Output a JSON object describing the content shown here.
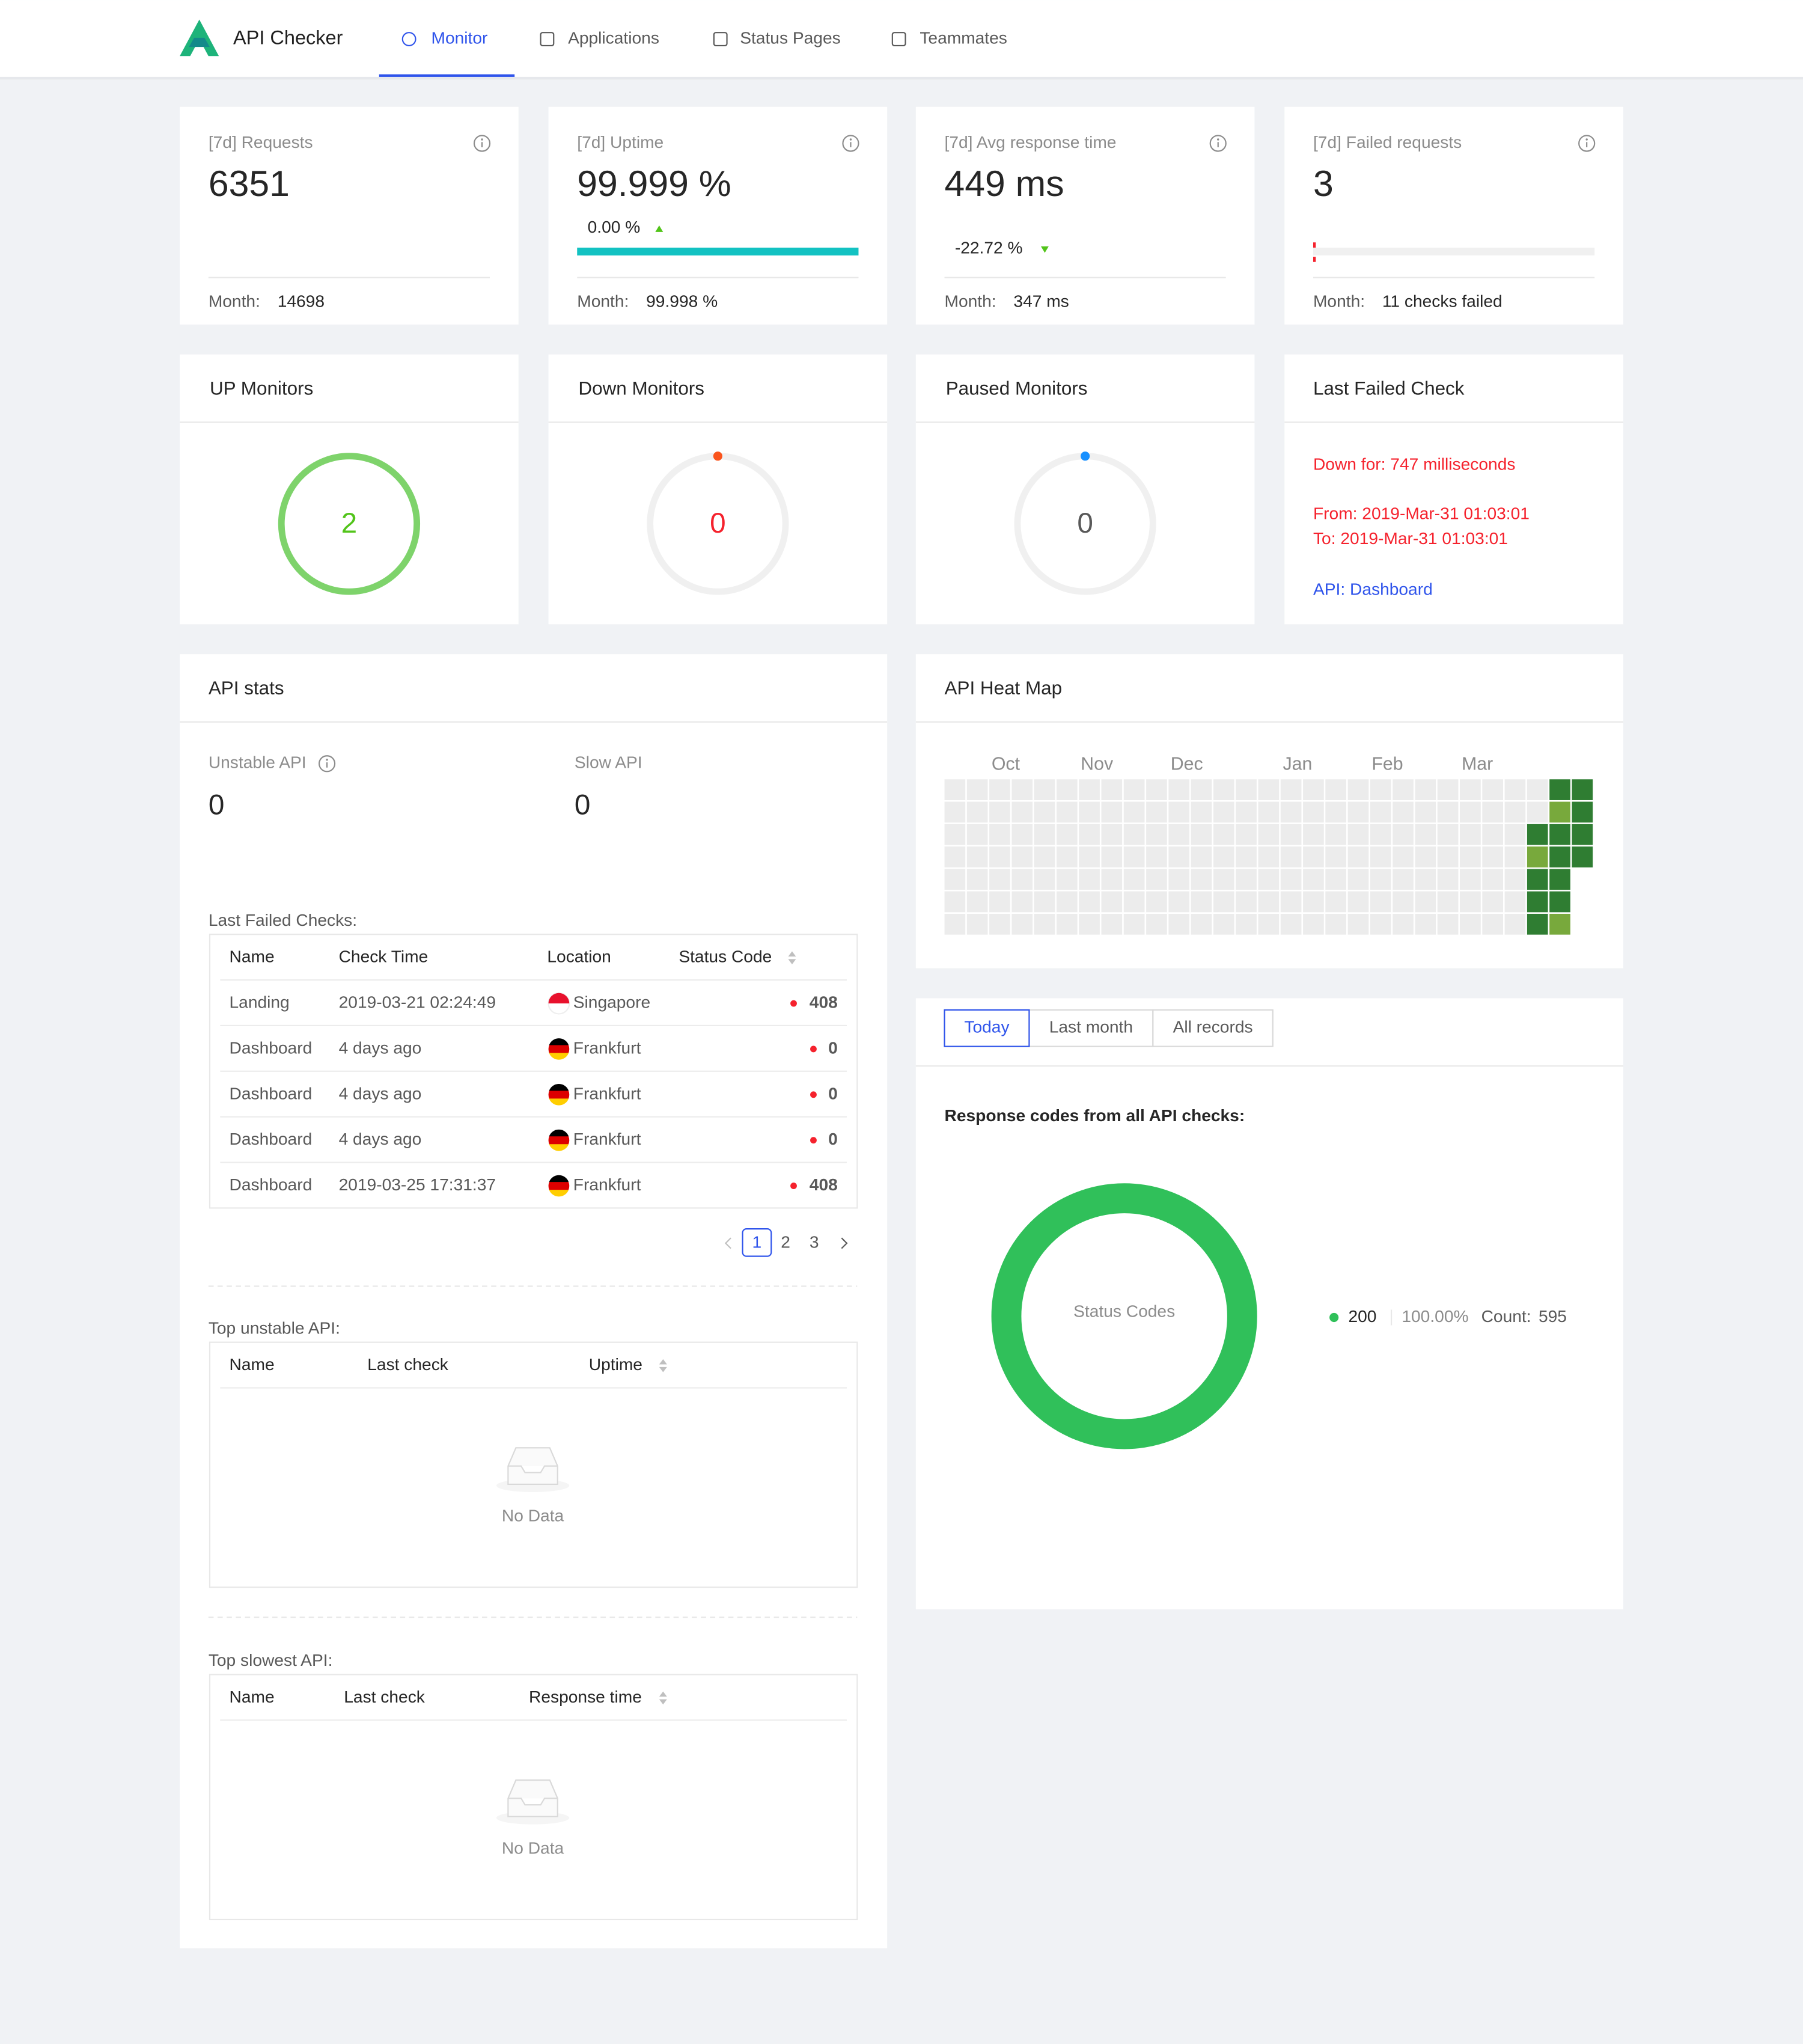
{
  "nav": {
    "brand": "API Checker",
    "tabs": [
      "Monitor",
      "Applications",
      "Status Pages",
      "Teammates"
    ],
    "active": 0
  },
  "stats": [
    {
      "label": "[7d] Requests",
      "value": "6351",
      "month_label": "Month:",
      "month_value": "14698"
    },
    {
      "label": "[7d] Uptime",
      "value": "99.999 %",
      "change": "0.00 %",
      "trend": "up",
      "progress": 99.999,
      "bar_color": "#13c2c2",
      "month_label": "Month:",
      "month_value": "99.998 %"
    },
    {
      "label": "[7d] Avg response time",
      "value": "449 ms",
      "change": "-22.72 %",
      "trend": "down",
      "month_label": "Month:",
      "month_value": "347 ms"
    },
    {
      "label": "[7d] Failed requests",
      "value": "3",
      "bar_color": "#f5222d",
      "month_label": "Month:",
      "month_value": "11 checks failed"
    }
  ],
  "monitors": [
    {
      "title": "UP Monitors",
      "count": 2,
      "ring_color": "#7ed36b",
      "value_color": "#52c41a",
      "dot_color": null
    },
    {
      "title": "Down Monitors",
      "count": 0,
      "ring_color": "#f0f0f0",
      "value_color": "#f5222d",
      "dot_color": "#fa541c"
    },
    {
      "title": "Paused Monitors",
      "count": 0,
      "ring_color": "#f0f0f0",
      "value_color": "#595959",
      "dot_color": "#1890ff"
    }
  ],
  "last_failed": {
    "title": "Last Failed Check",
    "lines": [
      "Down for: 747 milliseconds",
      "From: 2019-Mar-31 01:03:01",
      "To: 2019-Mar-31 01:03:01"
    ],
    "link": "API: Dashboard"
  },
  "api_stats": {
    "title": "API stats",
    "unstable_label": "Unstable API",
    "unstable": 0,
    "slow_label": "Slow API",
    "slow": 0,
    "failed_title": "Last Failed Checks:",
    "failed_columns": [
      "Name",
      "Check Time",
      "Location",
      "Status Code"
    ],
    "failed_rows": [
      [
        "Landing",
        "2019-03-21 02:24:49",
        "Singapore",
        408
      ],
      [
        "Dashboard",
        "4 days ago",
        "Frankfurt",
        0
      ],
      [
        "Dashboard",
        "4 days ago",
        "Frankfurt",
        0
      ],
      [
        "Dashboard",
        "4 days ago",
        "Frankfurt",
        0
      ],
      [
        "Dashboard",
        "2019-03-25 17:31:37",
        "Frankfurt",
        408
      ]
    ],
    "pages": [
      1,
      2,
      3
    ],
    "current_page": 0,
    "unstable_title": "Top unstable API:",
    "unstable_columns": [
      "Name",
      "Last check",
      "Uptime"
    ],
    "slowest_title": "Top slowest API:",
    "slowest_columns": [
      "Name",
      "Last check",
      "Response time"
    ],
    "empty": "No Data"
  },
  "heatmap": {
    "title": "API Heat Map",
    "months": [
      "Oct",
      "Nov",
      "Dec",
      "Jan",
      "Feb",
      "Mar"
    ],
    "level_colors": [
      "#ececec",
      "#78a93c",
      "#2f7d32"
    ],
    "weeks": [
      [
        0,
        0,
        0,
        0,
        0,
        0,
        0
      ],
      [
        0,
        0,
        0,
        0,
        0,
        0,
        0
      ],
      [
        0,
        0,
        0,
        0,
        0,
        0,
        0
      ],
      [
        0,
        0,
        0,
        0,
        0,
        0,
        0
      ],
      [
        0,
        0,
        0,
        0,
        0,
        0,
        0
      ],
      [
        0,
        0,
        0,
        0,
        0,
        0,
        0
      ],
      [
        0,
        0,
        0,
        0,
        0,
        0,
        0
      ],
      [
        0,
        0,
        0,
        0,
        0,
        0,
        0
      ],
      [
        0,
        0,
        0,
        0,
        0,
        0,
        0
      ],
      [
        0,
        0,
        0,
        0,
        0,
        0,
        0
      ],
      [
        0,
        0,
        0,
        0,
        0,
        0,
        0
      ],
      [
        0,
        0,
        0,
        0,
        0,
        0,
        0
      ],
      [
        0,
        0,
        0,
        0,
        0,
        0,
        0
      ],
      [
        0,
        0,
        0,
        0,
        0,
        0,
        0
      ],
      [
        0,
        0,
        0,
        0,
        0,
        0,
        0
      ],
      [
        0,
        0,
        0,
        0,
        0,
        0,
        0
      ],
      [
        0,
        0,
        0,
        0,
        0,
        0,
        0
      ],
      [
        0,
        0,
        0,
        0,
        0,
        0,
        0
      ],
      [
        0,
        0,
        0,
        0,
        0,
        0,
        0
      ],
      [
        0,
        0,
        0,
        0,
        0,
        0,
        0
      ],
      [
        0,
        0,
        0,
        0,
        0,
        0,
        0
      ],
      [
        0,
        0,
        0,
        0,
        0,
        0,
        0
      ],
      [
        0,
        0,
        0,
        0,
        0,
        0,
        0
      ],
      [
        0,
        0,
        0,
        0,
        0,
        0,
        0
      ],
      [
        0,
        0,
        0,
        0,
        0,
        0,
        0
      ],
      [
        0,
        0,
        0,
        0,
        0,
        0,
        0
      ],
      [
        0,
        0,
        2,
        1,
        2,
        2,
        2
      ],
      [
        2,
        1,
        2,
        2,
        2,
        2,
        1
      ],
      [
        2,
        2,
        2,
        2,
        null,
        null,
        null
      ]
    ]
  },
  "response": {
    "tabs": [
      "Today",
      "Last month",
      "All records"
    ],
    "active": 0,
    "subtitle": "Response codes from all API checks:",
    "center_label": "Status Codes",
    "codes": [
      {
        "name": "200",
        "color": "#30c05a",
        "percent": 100,
        "percent_label": "100.00%",
        "count_prefix": "Count:",
        "count": 595
      }
    ]
  }
}
